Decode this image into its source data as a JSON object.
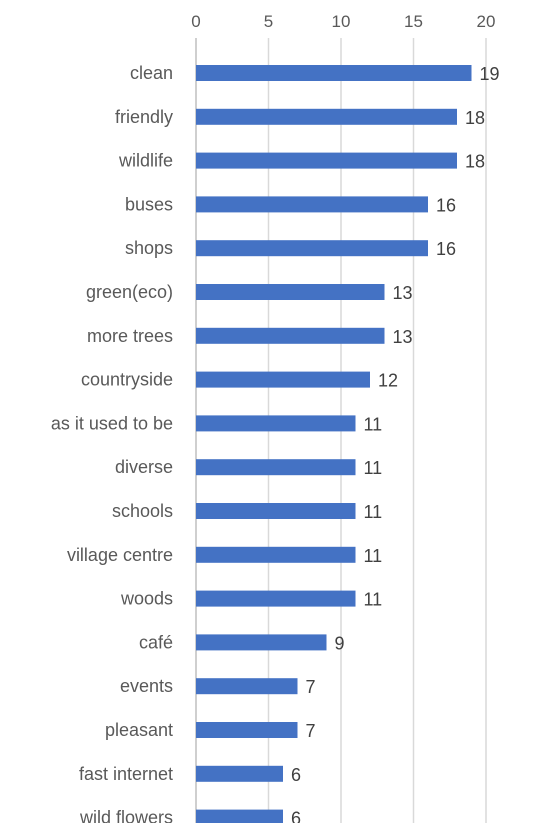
{
  "chart_data": {
    "type": "bar",
    "orientation": "horizontal",
    "title": "",
    "xlabel": "",
    "ylabel": "",
    "categories": [
      "clean",
      "friendly",
      "wildlife",
      "buses",
      "shops",
      "green(eco)",
      "more trees",
      "countryside",
      "as it used to be",
      "diverse",
      "schools",
      "village centre",
      "woods",
      "café",
      "events",
      "pleasant",
      "fast internet",
      "wild flowers"
    ],
    "values": [
      19,
      18,
      18,
      16,
      16,
      13,
      13,
      12,
      11,
      11,
      11,
      11,
      11,
      9,
      7,
      7,
      6,
      6
    ],
    "xlim": [
      0,
      20
    ],
    "xticks": [
      "0",
      "5",
      "10",
      "15",
      "20"
    ],
    "grid": true,
    "axis_position": "top",
    "bar_color": "#4472c4",
    "data_labels": true
  }
}
